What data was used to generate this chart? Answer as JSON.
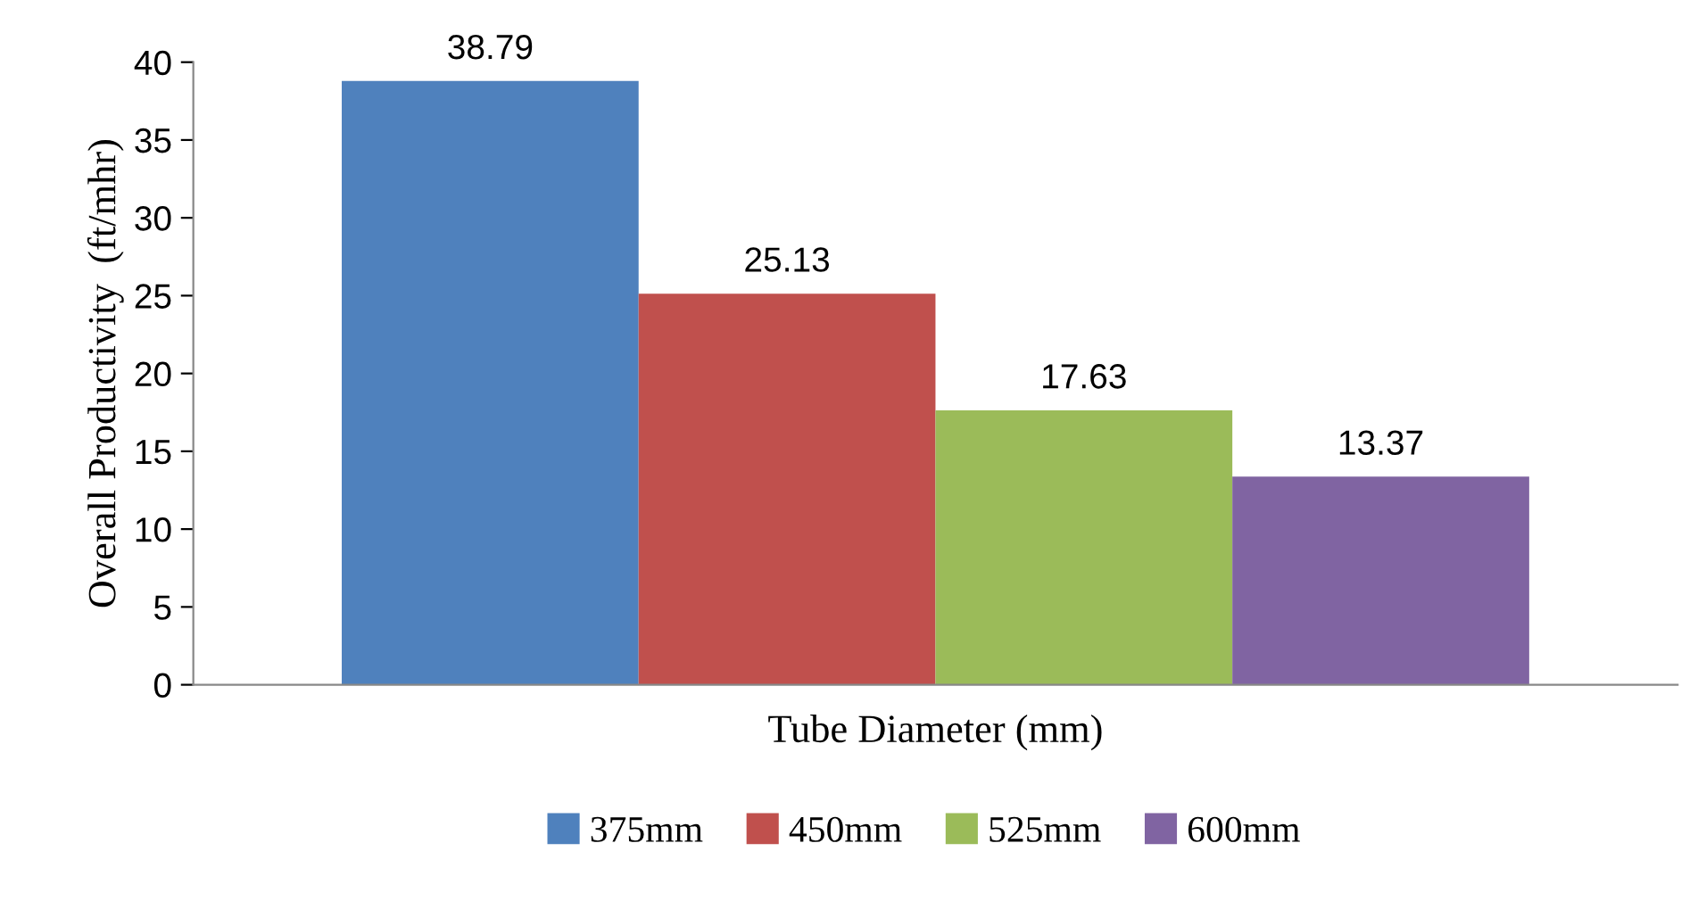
{
  "chart_data": {
    "type": "bar",
    "xlabel": "Tube Diameter (mm)",
    "ylabel": "Overall Productivity  (ft/mhr)",
    "categories": [
      null
    ],
    "series": [
      {
        "name": "375mm",
        "color": "#4f81bd",
        "values": [
          38.79
        ]
      },
      {
        "name": "450mm",
        "color": "#c0504d",
        "values": [
          25.13
        ]
      },
      {
        "name": "525mm",
        "color": "#9bbb59",
        "values": [
          17.63
        ]
      },
      {
        "name": "600mm",
        "color": "#8064a2",
        "values": [
          13.37
        ]
      }
    ],
    "ylim": [
      0,
      40
    ],
    "yticks": [
      0,
      5,
      10,
      15,
      20,
      25,
      30,
      35,
      40
    ],
    "data_labels": true,
    "legend": "bottom",
    "grid": false,
    "tick_labels": "y"
  }
}
